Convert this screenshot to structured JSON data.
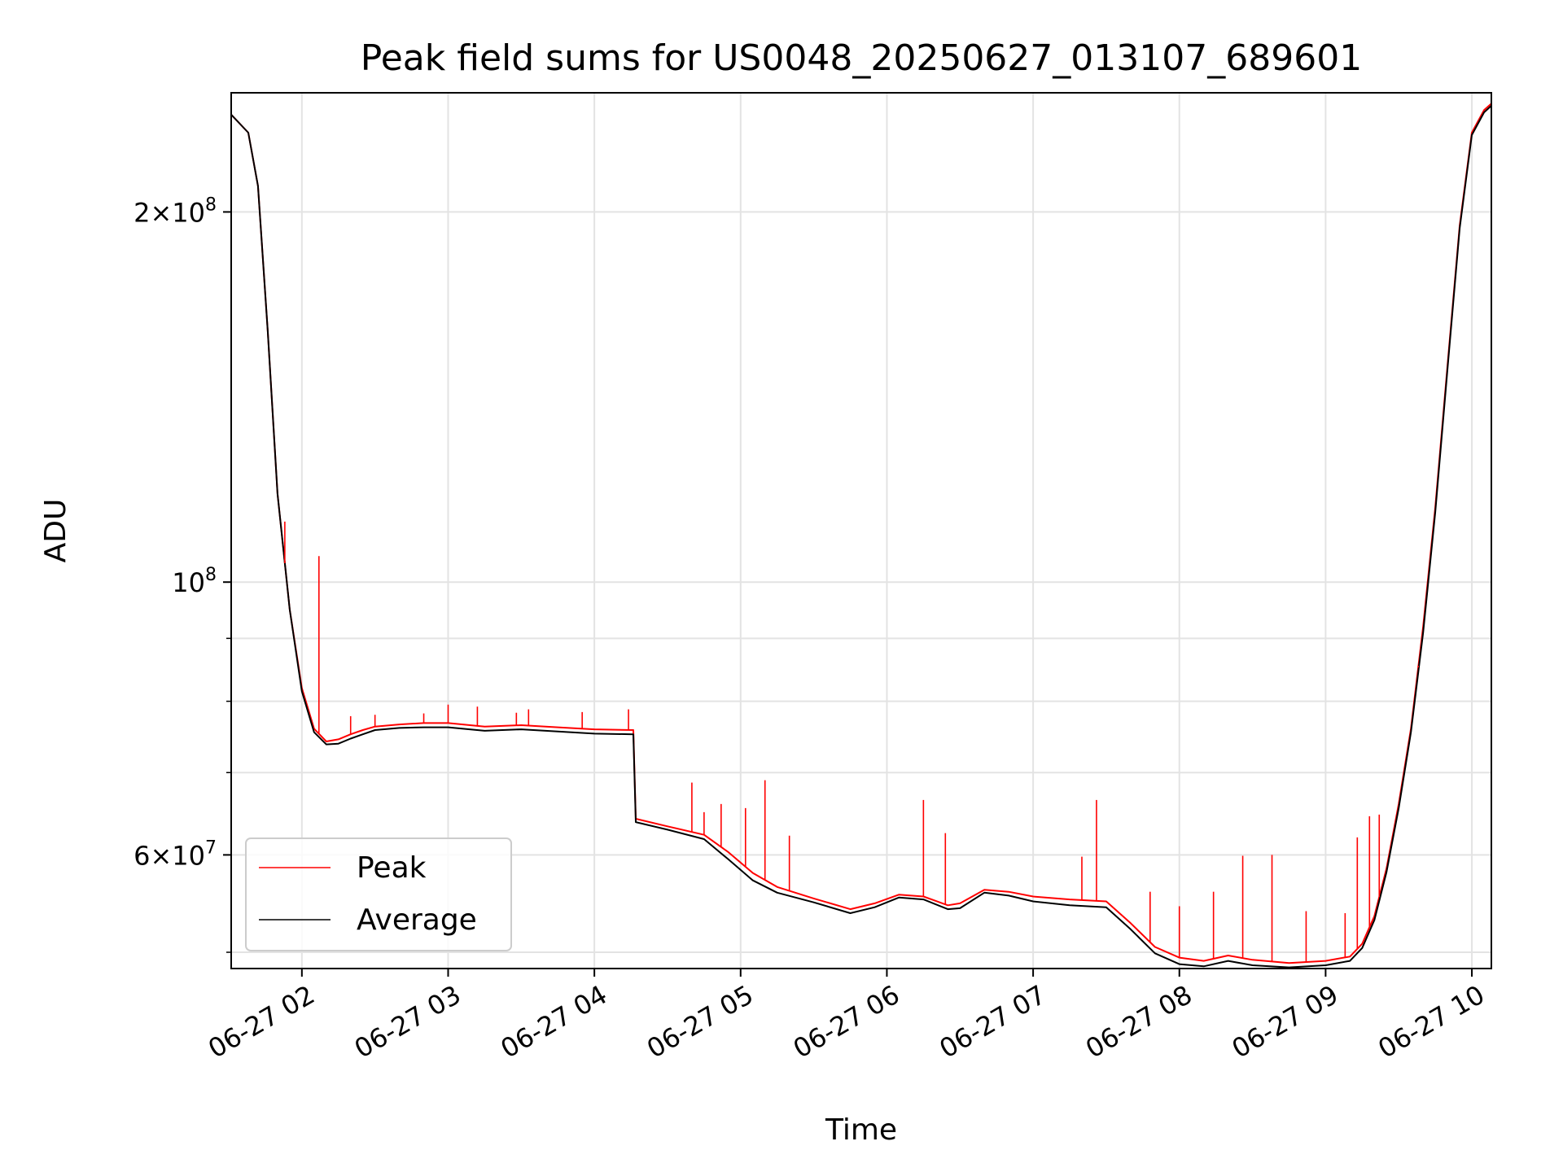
{
  "chart_data": {
    "type": "line",
    "title": "Peak field sums for US0048_20250627_013107_689601",
    "xlabel": "Time",
    "ylabel": "ADU",
    "y_scale": "log",
    "ylim": [
      48500000,
      250000000
    ],
    "xlim": [
      "2025-06-27T01:31",
      "2025-06-27T10:08"
    ],
    "grid": true,
    "legend_position": "lower-left",
    "x_ticks": [
      {
        "t": "2025-06-27T02:00",
        "label": "06-27 02"
      },
      {
        "t": "2025-06-27T03:00",
        "label": "06-27 03"
      },
      {
        "t": "2025-06-27T04:00",
        "label": "06-27 04"
      },
      {
        "t": "2025-06-27T05:00",
        "label": "06-27 05"
      },
      {
        "t": "2025-06-27T06:00",
        "label": "06-27 06"
      },
      {
        "t": "2025-06-27T07:00",
        "label": "06-27 07"
      },
      {
        "t": "2025-06-27T08:00",
        "label": "06-27 08"
      },
      {
        "t": "2025-06-27T09:00",
        "label": "06-27 09"
      },
      {
        "t": "2025-06-27T10:00",
        "label": "06-27 10"
      }
    ],
    "y_ticks_major": [
      {
        "v": 60000000,
        "base": "6",
        "exp": "7"
      },
      {
        "v": 100000000,
        "base": "",
        "exp": "8"
      },
      {
        "v": 200000000,
        "base": "2",
        "exp": "8"
      }
    ],
    "y_ticks_minor": [
      50000000,
      70000000,
      80000000,
      90000000
    ],
    "series": [
      {
        "name": "Peak",
        "color": "#ff0000",
        "x": [
          "2025-06-27T01:31",
          "2025-06-27T01:38",
          "2025-06-27T01:42",
          "2025-06-27T01:46",
          "2025-06-27T01:50",
          "2025-06-27T01:55",
          "2025-06-27T02:00",
          "2025-06-27T02:05",
          "2025-06-27T02:10",
          "2025-06-27T02:15",
          "2025-06-27T02:20",
          "2025-06-27T02:25",
          "2025-06-27T02:30",
          "2025-06-27T02:40",
          "2025-06-27T02:50",
          "2025-06-27T03:00",
          "2025-06-27T03:15",
          "2025-06-27T03:30",
          "2025-06-27T03:45",
          "2025-06-27T04:00",
          "2025-06-27T04:16",
          "2025-06-27T04:17",
          "2025-06-27T04:30",
          "2025-06-27T04:45",
          "2025-06-27T04:55",
          "2025-06-27T05:05",
          "2025-06-27T05:15",
          "2025-06-27T05:30",
          "2025-06-27T05:45",
          "2025-06-27T05:55",
          "2025-06-27T06:05",
          "2025-06-27T06:15",
          "2025-06-27T06:25",
          "2025-06-27T06:30",
          "2025-06-27T06:40",
          "2025-06-27T06:50",
          "2025-06-27T07:00",
          "2025-06-27T07:15",
          "2025-06-27T07:30",
          "2025-06-27T07:40",
          "2025-06-27T07:50",
          "2025-06-27T08:00",
          "2025-06-27T08:10",
          "2025-06-27T08:20",
          "2025-06-27T08:30",
          "2025-06-27T08:45",
          "2025-06-27T09:00",
          "2025-06-27T09:10",
          "2025-06-27T09:15",
          "2025-06-27T09:20",
          "2025-06-27T09:25",
          "2025-06-27T09:30",
          "2025-06-27T09:35",
          "2025-06-27T09:40",
          "2025-06-27T09:45",
          "2025-06-27T09:50",
          "2025-06-27T09:55",
          "2025-06-27T10:00",
          "2025-06-27T10:05",
          "2025-06-27T10:08"
        ],
        "values": [
          240000000,
          232000000,
          210000000,
          160000000,
          118000000,
          95000000,
          82000000,
          76000000,
          74200000,
          74500000,
          75200000,
          75800000,
          76300000,
          76600000,
          76800000,
          76800000,
          76300000,
          76500000,
          76200000,
          75900000,
          75800000,
          64200000,
          63300000,
          62300000,
          60300000,
          58000000,
          56500000,
          55300000,
          54200000,
          54800000,
          55700000,
          55500000,
          54600000,
          54800000,
          56200000,
          56000000,
          55500000,
          55200000,
          55000000,
          52800000,
          50500000,
          49500000,
          49200000,
          49700000,
          49300000,
          49000000,
          49200000,
          49600000,
          50800000,
          53500000,
          58500000,
          66000000,
          76000000,
          92000000,
          115000000,
          150000000,
          195000000,
          232000000,
          242000000,
          245000000
        ]
      },
      {
        "name": "Average",
        "color": "#000000",
        "x": [
          "2025-06-27T01:31",
          "2025-06-27T01:38",
          "2025-06-27T01:42",
          "2025-06-27T01:46",
          "2025-06-27T01:50",
          "2025-06-27T01:55",
          "2025-06-27T02:00",
          "2025-06-27T02:05",
          "2025-06-27T02:10",
          "2025-06-27T02:15",
          "2025-06-27T02:20",
          "2025-06-27T02:25",
          "2025-06-27T02:30",
          "2025-06-27T02:40",
          "2025-06-27T02:50",
          "2025-06-27T03:00",
          "2025-06-27T03:15",
          "2025-06-27T03:30",
          "2025-06-27T03:45",
          "2025-06-27T04:00",
          "2025-06-27T04:16",
          "2025-06-27T04:17",
          "2025-06-27T04:30",
          "2025-06-27T04:45",
          "2025-06-27T04:55",
          "2025-06-27T05:05",
          "2025-06-27T05:15",
          "2025-06-27T05:30",
          "2025-06-27T05:45",
          "2025-06-27T05:55",
          "2025-06-27T06:05",
          "2025-06-27T06:15",
          "2025-06-27T06:25",
          "2025-06-27T06:30",
          "2025-06-27T06:40",
          "2025-06-27T06:50",
          "2025-06-27T07:00",
          "2025-06-27T07:15",
          "2025-06-27T07:30",
          "2025-06-27T07:40",
          "2025-06-27T07:50",
          "2025-06-27T08:00",
          "2025-06-27T08:10",
          "2025-06-27T08:20",
          "2025-06-27T08:30",
          "2025-06-27T08:45",
          "2025-06-27T09:00",
          "2025-06-27T09:10",
          "2025-06-27T09:15",
          "2025-06-27T09:20",
          "2025-06-27T09:25",
          "2025-06-27T09:30",
          "2025-06-27T09:35",
          "2025-06-27T09:40",
          "2025-06-27T09:45",
          "2025-06-27T09:50",
          "2025-06-27T09:55",
          "2025-06-27T10:00",
          "2025-06-27T10:05",
          "2025-06-27T10:08"
        ],
        "values": [
          240000000,
          232000000,
          210000000,
          160000000,
          118000000,
          95000000,
          81500000,
          75500000,
          73800000,
          73900000,
          74600000,
          75200000,
          75800000,
          76100000,
          76200000,
          76200000,
          75700000,
          75900000,
          75600000,
          75300000,
          75200000,
          63800000,
          62900000,
          61800000,
          59500000,
          57200000,
          55900000,
          54900000,
          53800000,
          54400000,
          55400000,
          55200000,
          54200000,
          54300000,
          55900000,
          55600000,
          55000000,
          54600000,
          54400000,
          52200000,
          49900000,
          48900000,
          48700000,
          49200000,
          48800000,
          48600000,
          48800000,
          49200000,
          50400000,
          53100000,
          58100000,
          65500000,
          75500000,
          91000000,
          114000000,
          149000000,
          194000000,
          231000000,
          241000000,
          244000000
        ]
      }
    ],
    "peak_spikes": [
      {
        "t": "2025-06-27T01:53",
        "v": 112000000
      },
      {
        "t": "2025-06-27T02:07",
        "v": 105000000
      },
      {
        "t": "2025-06-27T02:20",
        "v": 77800000
      },
      {
        "t": "2025-06-27T02:30",
        "v": 78000000
      },
      {
        "t": "2025-06-27T02:50",
        "v": 78200000
      },
      {
        "t": "2025-06-27T03:00",
        "v": 79500000
      },
      {
        "t": "2025-06-27T03:12",
        "v": 79200000
      },
      {
        "t": "2025-06-27T03:28",
        "v": 78300000
      },
      {
        "t": "2025-06-27T03:33",
        "v": 78800000
      },
      {
        "t": "2025-06-27T03:55",
        "v": 78400000
      },
      {
        "t": "2025-06-27T04:14",
        "v": 78800000
      },
      {
        "t": "2025-06-27T04:40",
        "v": 68700000
      },
      {
        "t": "2025-06-27T04:45",
        "v": 65000000
      },
      {
        "t": "2025-06-27T04:52",
        "v": 66000000
      },
      {
        "t": "2025-06-27T05:02",
        "v": 65500000
      },
      {
        "t": "2025-06-27T05:10",
        "v": 69000000
      },
      {
        "t": "2025-06-27T05:20",
        "v": 62200000
      },
      {
        "t": "2025-06-27T06:15",
        "v": 66500000
      },
      {
        "t": "2025-06-27T06:24",
        "v": 62500000
      },
      {
        "t": "2025-06-27T07:20",
        "v": 59800000
      },
      {
        "t": "2025-06-27T07:26",
        "v": 66500000
      },
      {
        "t": "2025-06-27T07:48",
        "v": 56000000
      },
      {
        "t": "2025-06-27T08:00",
        "v": 54500000
      },
      {
        "t": "2025-06-27T08:14",
        "v": 56000000
      },
      {
        "t": "2025-06-27T08:26",
        "v": 59900000
      },
      {
        "t": "2025-06-27T08:38",
        "v": 60000000
      },
      {
        "t": "2025-06-27T08:52",
        "v": 54000000
      },
      {
        "t": "2025-06-27T09:08",
        "v": 53800000
      },
      {
        "t": "2025-06-27T09:13",
        "v": 62000000
      },
      {
        "t": "2025-06-27T09:18",
        "v": 64500000
      },
      {
        "t": "2025-06-27T09:22",
        "v": 64700000
      },
      {
        "t": "2025-06-27T09:38",
        "v": 85500000
      }
    ]
  }
}
